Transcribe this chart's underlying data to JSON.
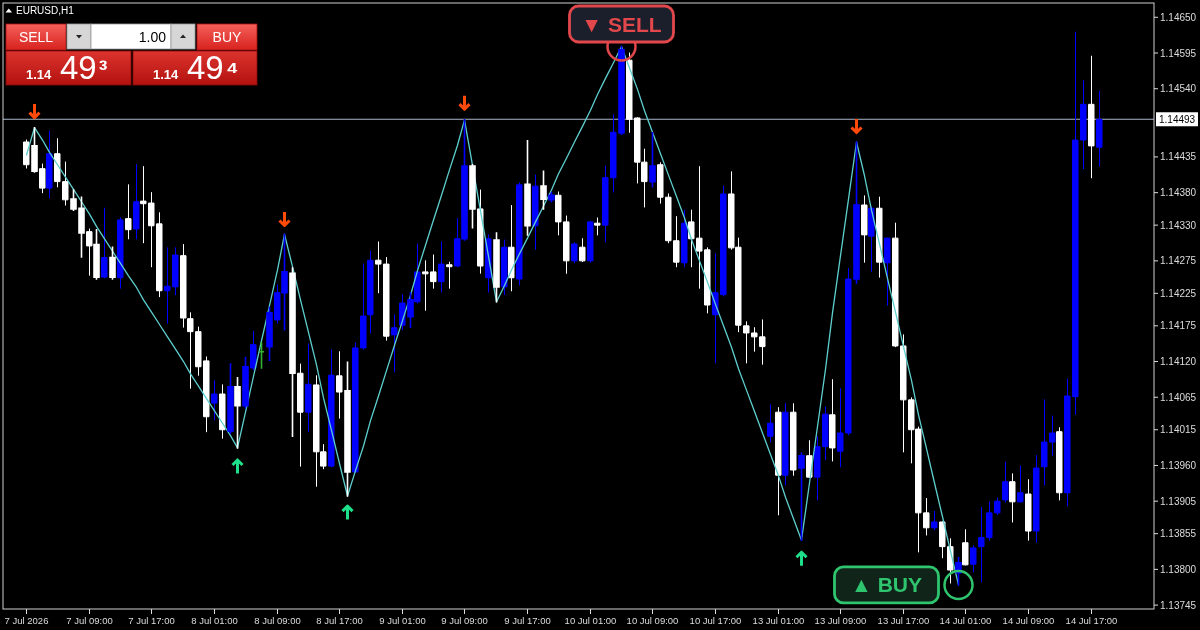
{
  "chart_data": {
    "type": "candlestick",
    "title": "EURUSD,H1",
    "categories": [
      "7 Jul 2026",
      null,
      null,
      null,
      null,
      null,
      null,
      null,
      "7 Jul 09:00",
      null,
      null,
      null,
      null,
      null,
      null,
      null,
      "7 Jul 17:00",
      null,
      null,
      null,
      null,
      null,
      null,
      null,
      "8 Jul 01:00",
      null,
      null,
      null,
      null,
      null,
      null,
      null,
      "8 Jul 09:00",
      null,
      null,
      null,
      null,
      null,
      null,
      null,
      "8 Jul 17:00",
      null,
      null,
      null,
      null,
      null,
      null,
      null,
      "9 Jul 01:00",
      null,
      null,
      null,
      null,
      null,
      null,
      null,
      "9 Jul 09:00",
      null,
      null,
      null,
      null,
      null,
      null,
      null,
      "9 Jul 17:00",
      null,
      null,
      null,
      null,
      null,
      null,
      null,
      "10 Jul 01:00",
      null,
      null,
      null,
      null,
      null,
      null,
      null,
      "10 Jul 09:00",
      null,
      null,
      null,
      null,
      null,
      null,
      null,
      "10 Jul 17:00",
      null,
      null,
      null,
      null,
      null,
      null,
      null,
      "13 Jul 01:00",
      null,
      null,
      null,
      null,
      null,
      null,
      null,
      "13 Jul 09:00",
      null,
      null,
      null,
      null,
      null,
      null,
      null,
      "13 Jul 17:00",
      null,
      null,
      null,
      null,
      null,
      null,
      null,
      "14 Jul 01:00",
      null,
      null,
      null,
      null,
      null,
      null,
      null,
      "14 Jul 09:00",
      null,
      null,
      null,
      null,
      null,
      null,
      null,
      "14 Jul 17:00",
      null
    ],
    "ohlc": [
      [
        1.14458,
        1.14461,
        1.14418,
        1.14423
      ],
      [
        1.14452,
        1.1448,
        1.14412,
        1.14413
      ],
      [
        1.14417,
        1.14424,
        1.1438,
        1.14387
      ],
      [
        1.14387,
        1.14475,
        1.14372,
        1.1444
      ],
      [
        1.1444,
        1.14463,
        1.14389,
        1.14397
      ],
      [
        1.14397,
        1.14427,
        1.14361,
        1.14369
      ],
      [
        1.1437,
        1.14384,
        1.14353,
        1.14355
      ],
      [
        1.14356,
        1.14373,
        1.14281,
        1.14318
      ],
      [
        1.1432,
        1.14324,
        1.14253,
        1.14298
      ],
      [
        1.143,
        1.14323,
        1.14247,
        1.1425
      ],
      [
        1.1425,
        1.14356,
        1.14249,
        1.1428
      ],
      [
        1.1428,
        1.14296,
        1.14247,
        1.1425
      ],
      [
        1.14249,
        1.14341,
        1.14233,
        1.14338
      ],
      [
        1.1434,
        1.14392,
        1.14309,
        1.14323
      ],
      [
        1.14324,
        1.14423,
        1.14309,
        1.14366
      ],
      [
        1.14367,
        1.1442,
        1.14303,
        1.14363
      ],
      [
        1.14364,
        1.1438,
        1.14266,
        1.14329
      ],
      [
        1.14332,
        1.14349,
        1.1422,
        1.14229
      ],
      [
        1.14229,
        1.14295,
        1.14179,
        1.14236
      ],
      [
        1.14235,
        1.14295,
        1.14223,
        1.14284
      ],
      [
        1.14283,
        1.143,
        1.14173,
        1.14187
      ],
      [
        1.14186,
        1.14195,
        1.14079,
        1.14166
      ],
      [
        1.14166,
        1.14173,
        1.14099,
        1.14112
      ],
      [
        1.14121,
        1.14127,
        1.14012,
        1.14035
      ],
      [
        1.14056,
        1.1409,
        1.1403,
        1.1407
      ],
      [
        1.1407,
        1.14084,
        1.14002,
        1.14015
      ],
      [
        1.14013,
        1.14116,
        1.1401,
        1.14081
      ],
      [
        1.14081,
        1.14095,
        1.13987,
        1.14052
      ],
      [
        1.14052,
        1.14126,
        1.14049,
        1.14112
      ],
      [
        1.1411,
        1.14166,
        1.14107,
        1.14146
      ],
      [
        1.14135,
        1.14149,
        1.1411,
        1.14135
      ],
      [
        1.14143,
        1.14203,
        1.14122,
        1.14195
      ],
      [
        1.14184,
        1.14238,
        1.14179,
        1.14226
      ],
      [
        1.14226,
        1.14316,
        1.14169,
        1.14258
      ],
      [
        1.14256,
        1.14264,
        1.14005,
        1.14102
      ],
      [
        1.14102,
        1.14116,
        1.13959,
        1.14042
      ],
      [
        1.14042,
        1.14147,
        1.14012,
        1.14085
      ],
      [
        1.14084,
        1.14098,
        1.13928,
        1.13981
      ],
      [
        1.13981,
        1.13992,
        1.13955,
        1.13959
      ],
      [
        1.13959,
        1.14138,
        1.13958,
        1.14099
      ],
      [
        1.14098,
        1.14135,
        1.14033,
        1.14073
      ],
      [
        1.14075,
        1.14119,
        1.13913,
        1.1395
      ],
      [
        1.1395,
        1.14149,
        1.13949,
        1.14141
      ],
      [
        1.14141,
        1.1427,
        1.14139,
        1.1419
      ],
      [
        1.14192,
        1.1429,
        1.14164,
        1.14276
      ],
      [
        1.14276,
        1.14304,
        1.14226,
        1.1427
      ],
      [
        1.1427,
        1.1428,
        1.14153,
        1.14159
      ],
      [
        1.14161,
        1.14192,
        1.14104,
        1.14172
      ],
      [
        1.14176,
        1.14223,
        1.14169,
        1.1421
      ],
      [
        1.14189,
        1.14226,
        1.14173,
        1.14215
      ],
      [
        1.14212,
        1.14301,
        1.1421,
        1.14258
      ],
      [
        1.14258,
        1.14275,
        1.14199,
        1.14255
      ],
      [
        1.14258,
        1.14284,
        1.14233,
        1.14243
      ],
      [
        1.14243,
        1.14304,
        1.14227,
        1.1427
      ],
      [
        1.14269,
        1.14273,
        1.14233,
        1.14266
      ],
      [
        1.14267,
        1.1434,
        1.14266,
        1.14309
      ],
      [
        1.14309,
        1.14492,
        1.14307,
        1.14421
      ],
      [
        1.14421,
        1.14423,
        1.14326,
        1.14355
      ],
      [
        1.14355,
        1.14384,
        1.14256,
        1.14267
      ],
      [
        1.14249,
        1.14315,
        1.14227,
        1.14309
      ],
      [
        1.14307,
        1.14318,
        1.14212,
        1.14235
      ],
      [
        1.14235,
        1.14307,
        1.14223,
        1.14296
      ],
      [
        1.14296,
        1.1436,
        1.14229,
        1.14249
      ],
      [
        1.14247,
        1.14395,
        1.14238,
        1.14392
      ],
      [
        1.14393,
        1.1446,
        1.14315,
        1.14329
      ],
      [
        1.14329,
        1.14407,
        1.14293,
        1.1439
      ],
      [
        1.1439,
        1.14413,
        1.14355,
        1.1437
      ],
      [
        1.14369,
        1.1438,
        1.14366,
        1.14376
      ],
      [
        1.14376,
        1.14381,
        1.14315,
        1.14335
      ],
      [
        1.14335,
        1.14344,
        1.14256,
        1.14275
      ],
      [
        1.14275,
        1.14303,
        1.14272,
        1.14301
      ],
      [
        1.14296,
        1.14309,
        1.14274,
        1.14275
      ],
      [
        1.14275,
        1.14336,
        1.14273,
        1.14335
      ],
      [
        1.14333,
        1.14341,
        1.14315,
        1.1433
      ],
      [
        1.1433,
        1.14421,
        1.14304,
        1.14403
      ],
      [
        1.14403,
        1.145,
        1.14381,
        1.14473
      ],
      [
        1.14472,
        1.14605,
        1.1447,
        1.146
      ],
      [
        1.14584,
        1.14595,
        1.14473,
        1.14493
      ],
      [
        1.14495,
        1.14495,
        1.14395,
        1.14427
      ],
      [
        1.14427,
        1.14447,
        1.14358,
        1.14397
      ],
      [
        1.14397,
        1.14472,
        1.14389,
        1.14421
      ],
      [
        1.14423,
        1.14426,
        1.14364,
        1.14373
      ],
      [
        1.14373,
        1.14378,
        1.14303,
        1.14306
      ],
      [
        1.14306,
        1.14343,
        1.14266,
        1.14273
      ],
      [
        1.14272,
        1.14353,
        1.14266,
        1.14333
      ],
      [
        1.14335,
        1.14353,
        1.14266,
        1.14309
      ],
      [
        1.1431,
        1.1442,
        1.14233,
        1.1429
      ],
      [
        1.14292,
        1.14295,
        1.14195,
        1.14207
      ],
      [
        1.14192,
        1.14286,
        1.14118,
        1.14226
      ],
      [
        1.14223,
        1.1439,
        1.14221,
        1.14378
      ],
      [
        1.14378,
        1.14412,
        1.14293,
        1.14295
      ],
      [
        1.14296,
        1.1431,
        1.14166,
        1.14176
      ],
      [
        1.14175,
        1.14181,
        1.14118,
        1.14164
      ],
      [
        1.14164,
        1.14172,
        1.14136,
        1.14158
      ],
      [
        1.14158,
        1.14184,
        1.14116,
        1.14143
      ],
      [
        1.14005,
        1.14053,
        1.13996,
        1.14025
      ],
      [
        1.14042,
        1.14049,
        1.13884,
        1.13945
      ],
      [
        1.13945,
        1.14055,
        1.1393,
        1.14042
      ],
      [
        1.14042,
        1.14055,
        1.13945,
        1.13953
      ],
      [
        1.13956,
        1.13979,
        1.13845,
        1.13975
      ],
      [
        1.13975,
        1.13998,
        1.13942,
        1.13942
      ],
      [
        1.13942,
        1.14004,
        1.13907,
        1.13989
      ],
      [
        1.13989,
        1.1405,
        1.13969,
        1.14039
      ],
      [
        1.14038,
        1.14092,
        1.13967,
        1.13987
      ],
      [
        1.13982,
        1.14078,
        1.13958,
        1.1401
      ],
      [
        1.1401,
        1.14263,
        1.14007,
        1.14247
      ],
      [
        1.14247,
        1.14458,
        1.14241,
        1.14361
      ],
      [
        1.14361,
        1.14375,
        1.14273,
        1.14315
      ],
      [
        1.14313,
        1.14358,
        1.14259,
        1.14356
      ],
      [
        1.14356,
        1.14373,
        1.1425,
        1.14273
      ],
      [
        1.14272,
        1.1431,
        1.14207,
        1.1431
      ],
      [
        1.1431,
        1.14333,
        1.14143,
        1.14144
      ],
      [
        1.14144,
        1.14161,
        1.13981,
        1.14061
      ],
      [
        1.14061,
        1.14064,
        1.13964,
        1.14015
      ],
      [
        1.14016,
        1.14019,
        1.13827,
        1.13887
      ],
      [
        1.13887,
        1.13909,
        1.13853,
        1.13864
      ],
      [
        1.13864,
        1.13889,
        1.13861,
        1.13873
      ],
      [
        1.13873,
        1.13873,
        1.13818,
        1.13835
      ],
      [
        1.13835,
        1.13847,
        1.13779,
        1.13799
      ],
      [
        1.13795,
        1.13818,
        1.13776,
        1.1381
      ],
      [
        1.13841,
        1.13861,
        1.13807,
        1.13807
      ],
      [
        1.13808,
        1.13836,
        1.13796,
        1.13833
      ],
      [
        1.13835,
        1.13895,
        1.13781,
        1.13849
      ],
      [
        1.13849,
        1.13904,
        1.13845,
        1.13887
      ],
      [
        1.13887,
        1.1391,
        1.13884,
        1.13905
      ],
      [
        1.13907,
        1.13965,
        1.13904,
        1.13935
      ],
      [
        1.13935,
        1.13947,
        1.13873,
        1.13904
      ],
      [
        1.13904,
        1.13959,
        1.13904,
        1.13918
      ],
      [
        1.13916,
        1.13938,
        1.13845,
        1.13859
      ],
      [
        1.13859,
        1.13975,
        1.13842,
        1.13956
      ],
      [
        1.13958,
        1.14061,
        1.1393,
        1.13996
      ],
      [
        1.13996,
        1.14036,
        1.13976,
        1.1401
      ],
      [
        1.14012,
        1.14018,
        1.13907,
        1.13918
      ],
      [
        1.13918,
        1.14093,
        1.13898,
        1.14067
      ],
      [
        1.14066,
        1.14627,
        1.14039,
        1.14461
      ],
      [
        1.14461,
        1.14552,
        1.14417,
        1.14516
      ],
      [
        1.14516,
        1.1459,
        1.14403,
        1.14452
      ],
      [
        1.1445,
        1.14536,
        1.14421,
        1.14493
      ]
    ],
    "colors": [
      "#ffffff",
      "#ffffff",
      "#ffffff",
      "#0000ff",
      "#ffffff",
      "#ffffff",
      "#ffffff",
      "#ffffff",
      "#ffffff",
      "#ffffff",
      "#0000ff",
      "#ffffff",
      "#0000ff",
      "#ffffff",
      "#0000ff",
      "#ffffff",
      "#ffffff",
      "#ffffff",
      "#0000ff",
      "#0000ff",
      "#ffffff",
      "#ffffff",
      "#ffffff",
      "#ffffff",
      "#0000ff",
      "#ffffff",
      "#0000ff",
      "#ffffff",
      "#0000ff",
      "#0000ff",
      "#32b432",
      "#0000ff",
      "#0000ff",
      "#0000ff",
      "#ffffff",
      "#ffffff",
      "#0000ff",
      "#ffffff",
      "#ffffff",
      "#0000ff",
      "#ffffff",
      "#ffffff",
      "#0000ff",
      "#0000ff",
      "#0000ff",
      "#ffffff",
      "#ffffff",
      "#0000ff",
      "#0000ff",
      "#0000ff",
      "#0000ff",
      "#ffffff",
      "#ffffff",
      "#0000ff",
      "#ffffff",
      "#0000ff",
      "#0000ff",
      "#ffffff",
      "#ffffff",
      "#0000ff",
      "#ffffff",
      "#0000ff",
      "#ffffff",
      "#0000ff",
      "#ffffff",
      "#0000ff",
      "#ffffff",
      "#0000ff",
      "#ffffff",
      "#ffffff",
      "#0000ff",
      "#ffffff",
      "#0000ff",
      "#ffffff",
      "#0000ff",
      "#0000ff",
      "#0000ff",
      "#ffffff",
      "#ffffff",
      "#ffffff",
      "#0000ff",
      "#ffffff",
      "#ffffff",
      "#ffffff",
      "#0000ff",
      "#ffffff",
      "#ffffff",
      "#ffffff",
      "#0000ff",
      "#0000ff",
      "#ffffff",
      "#ffffff",
      "#ffffff",
      "#ffffff",
      "#ffffff",
      "#0000ff",
      "#ffffff",
      "#0000ff",
      "#ffffff",
      "#0000ff",
      "#ffffff",
      "#0000ff",
      "#0000ff",
      "#ffffff",
      "#0000ff",
      "#0000ff",
      "#0000ff",
      "#ffffff",
      "#0000ff",
      "#ffffff",
      "#0000ff",
      "#ffffff",
      "#ffffff",
      "#ffffff",
      "#ffffff",
      "#ffffff",
      "#0000ff",
      "#ffffff",
      "#ffffff",
      "#0000ff",
      "#ffffff",
      "#0000ff",
      "#0000ff",
      "#0000ff",
      "#0000ff",
      "#0000ff",
      "#ffffff",
      "#0000ff",
      "#ffffff",
      "#0000ff",
      "#0000ff",
      "#0000ff",
      "#ffffff",
      "#0000ff",
      "#0000ff",
      "#0000ff",
      "#ffffff",
      "#0000ff"
    ],
    "series": [
      {
        "type": "line",
        "color": "#5ecfcf",
        "values": [
          1.14438,
          1.1448,
          1.14461,
          1.14442,
          1.14423,
          1.14404,
          1.14385,
          1.14366,
          1.14347,
          1.14328,
          1.14309,
          1.1429,
          1.14271,
          1.14252,
          1.14234,
          1.14215,
          1.14196,
          1.14177,
          1.14158,
          1.14139,
          1.1412,
          1.14101,
          1.14082,
          1.14063,
          1.14044,
          1.14025,
          1.14006,
          1.13987,
          1.14042,
          1.14097,
          1.14152,
          1.14206,
          1.14261,
          1.14316,
          1.14266,
          1.14215,
          1.14165,
          1.14115,
          1.14064,
          1.14014,
          1.13963,
          1.13913,
          1.13952,
          1.1399,
          1.14029,
          1.14067,
          1.14106,
          1.14145,
          1.14183,
          1.14222,
          1.1426,
          1.14299,
          1.14338,
          1.14376,
          1.14415,
          1.14453,
          1.14492,
          1.14422,
          1.14352,
          1.14282,
          1.14212,
          1.14237,
          1.14261,
          1.14286,
          1.1431,
          1.14335,
          1.14359,
          1.14384,
          1.14409,
          1.14433,
          1.14458,
          1.14482,
          1.14507,
          1.14531,
          1.14556,
          1.1458,
          1.14605,
          1.14572,
          1.14539,
          1.14506,
          1.14473,
          1.1444,
          1.14407,
          1.14374,
          1.14341,
          1.14308,
          1.14275,
          1.14242,
          1.14208,
          1.14175,
          1.14142,
          1.14109,
          1.14076,
          1.14043,
          1.1401,
          1.13977,
          1.13944,
          1.13911,
          1.13878,
          1.13845,
          1.13933,
          1.1402,
          1.14108,
          1.14195,
          1.14283,
          1.1437,
          1.14458,
          1.14406,
          1.14353,
          1.14301,
          1.14248,
          1.14196,
          1.14143,
          1.14091,
          1.14038,
          1.13986,
          1.13933,
          1.13881,
          1.13828,
          1.13776,
          null,
          null,
          null,
          null,
          null,
          null,
          null,
          null,
          null,
          null,
          null,
          null,
          null,
          null,
          null,
          null,
          null,
          null
        ]
      },
      {
        "type": "scatter",
        "color": "#ff4a0a",
        "values": [
          null,
          1.14504,
          null,
          null,
          null,
          null,
          null,
          null,
          null,
          null,
          null,
          null,
          null,
          null,
          null,
          null,
          null,
          null,
          null,
          null,
          null,
          null,
          null,
          null,
          null,
          null,
          null,
          null,
          null,
          null,
          null,
          null,
          null,
          1.14338,
          null,
          null,
          null,
          null,
          null,
          null,
          null,
          null,
          null,
          null,
          null,
          null,
          null,
          null,
          null,
          null,
          null,
          null,
          null,
          null,
          null,
          null,
          1.14517,
          null,
          null,
          null,
          null,
          null,
          null,
          null,
          null,
          null,
          null,
          null,
          null,
          null,
          null,
          null,
          null,
          null,
          null,
          null,
          null,
          null,
          null,
          null,
          null,
          null,
          null,
          null,
          null,
          null,
          null,
          null,
          null,
          null,
          null,
          null,
          null,
          null,
          null,
          null,
          null,
          null,
          null,
          null,
          null,
          null,
          null,
          null,
          null,
          null,
          1.14481,
          null,
          null,
          null,
          null,
          null,
          null,
          null,
          null,
          null,
          null,
          null,
          null,
          null,
          null,
          null,
          null,
          null,
          null,
          null,
          null,
          null,
          null,
          null,
          null,
          null,
          null,
          null,
          null,
          null,
          null,
          null
        ]
      },
      {
        "type": "scatter",
        "color": "#1fe08a",
        "values": [
          null,
          null,
          null,
          null,
          null,
          null,
          null,
          null,
          null,
          null,
          null,
          null,
          null,
          null,
          null,
          null,
          null,
          null,
          null,
          null,
          null,
          null,
          null,
          null,
          null,
          null,
          null,
          1.1396,
          null,
          null,
          null,
          null,
          null,
          null,
          null,
          null,
          null,
          null,
          null,
          null,
          null,
          1.13889,
          null,
          null,
          null,
          null,
          null,
          null,
          null,
          null,
          null,
          null,
          null,
          null,
          null,
          null,
          null,
          null,
          null,
          null,
          null,
          null,
          null,
          null,
          null,
          null,
          null,
          null,
          null,
          null,
          null,
          null,
          null,
          null,
          null,
          null,
          null,
          null,
          null,
          null,
          null,
          null,
          null,
          null,
          null,
          null,
          null,
          null,
          null,
          null,
          null,
          null,
          null,
          null,
          null,
          null,
          null,
          null,
          null,
          1.13818,
          null,
          null,
          null,
          null,
          null,
          null,
          null,
          null,
          null,
          null,
          null,
          null,
          null,
          null,
          null,
          null,
          null,
          null,
          null,
          null,
          null,
          null,
          null,
          null,
          null,
          null,
          null,
          null,
          null,
          null,
          null,
          null,
          null,
          null,
          null,
          null,
          null,
          null
        ]
      }
    ],
    "ylim": [
      1.13739,
      1.14672
    ],
    "yticks": [
      {
        "value": 1.1465,
        "label": "1.14650"
      },
      {
        "value": 1.14595,
        "label": "1.14595"
      },
      {
        "value": 1.1454,
        "label": "1.14540"
      },
      {
        "value": 1.14435,
        "label": "1.14435"
      },
      {
        "value": 1.1438,
        "label": "1.14380"
      },
      {
        "value": 1.1433,
        "label": "1.14330"
      },
      {
        "value": 1.14275,
        "label": "1.14275"
      },
      {
        "value": 1.14225,
        "label": "1.14225"
      },
      {
        "value": 1.14175,
        "label": "1.14175"
      },
      {
        "value": 1.1412,
        "label": "1.14120"
      },
      {
        "value": 1.14065,
        "label": "1.14065"
      },
      {
        "value": 1.14015,
        "label": "1.14015"
      },
      {
        "value": 1.1396,
        "label": "1.13960"
      },
      {
        "value": 1.13905,
        "label": "1.13905"
      },
      {
        "value": 1.13855,
        "label": "1.13855"
      },
      {
        "value": 1.138,
        "label": "1.13800"
      },
      {
        "value": 1.13745,
        "label": "1.13745"
      }
    ],
    "ref_lines": [
      {
        "axis": "y",
        "value": 1.14493,
        "label": "1.14493",
        "color": "#a9b6c9"
      }
    ],
    "annotations": [
      "SELL",
      "1.00",
      "BUY",
      "1.14 49³",
      "1.14 49⁴",
      {
        "text": "▼ SELL",
        "y": 1.14605
      },
      "▲ BUY"
    ]
  }
}
